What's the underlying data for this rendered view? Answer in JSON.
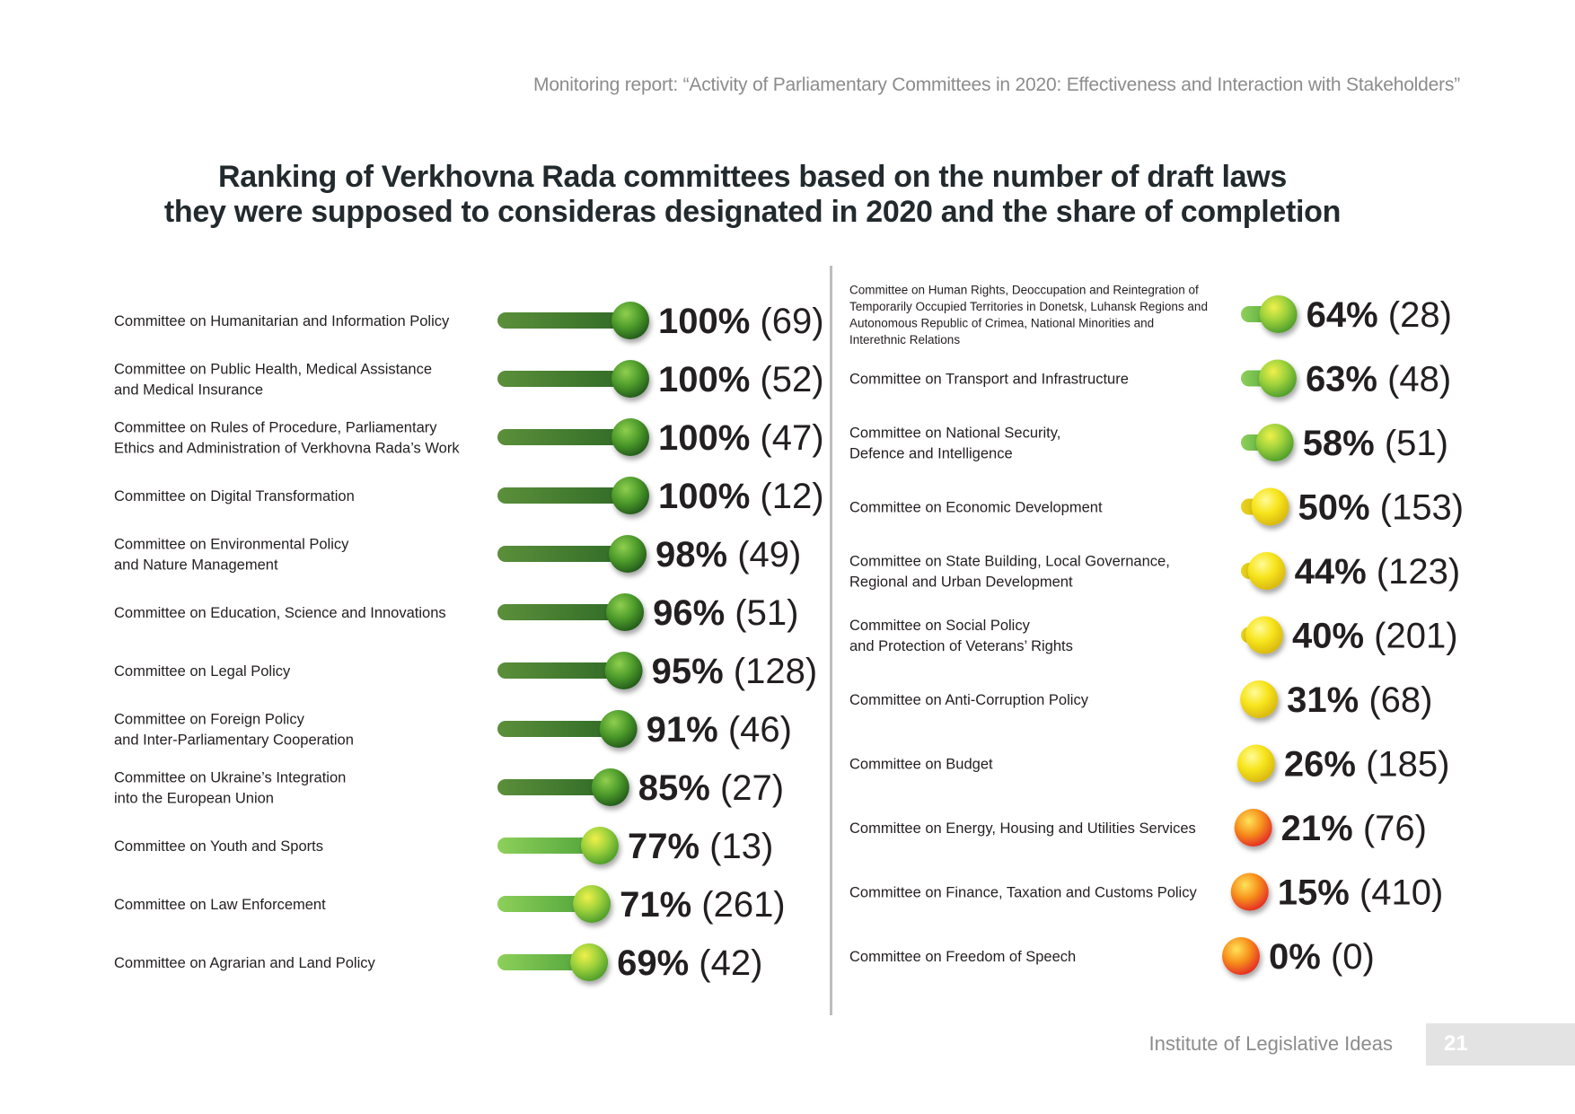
{
  "header": "Monitoring report: “Activity of Parliamentary Committees in 2020: Effectiveness and Interaction with Stakeholders”",
  "footer": {
    "institute": "Institute of Legislative Ideas",
    "page": "21"
  },
  "colors": {
    "dark_green": "#3f7d2a",
    "light_green": "#8dc63f",
    "yellow": "#f2e01b",
    "orange": "#f15a24"
  },
  "chart_data": {
    "type": "bar",
    "title": "Ranking of Verkhovna Rada committees based on the number of draft laws they were supposed to consideras designated in 2020 and the share of completion",
    "title_lines": [
      "Ranking of Verkhovna Rada committees based on the number of draft laws",
      "they were supposed to consideras designated in 2020 and the share of completion"
    ],
    "value_unit": "%",
    "xlim": [
      0,
      100
    ],
    "grid": false,
    "legend": "none",
    "series": [
      {
        "values": [
          {
            "label": [
              "Committee on Humanitarian and Information Policy"
            ],
            "pct": 100,
            "count": 69
          },
          {
            "label": [
              "Committee on Public Health, Medical Assistance",
              "and Medical Insurance"
            ],
            "pct": 100,
            "count": 52
          },
          {
            "label": [
              "Committee on Rules of Procedure, Parliamentary",
              "Ethics and Administration of Verkhovna Rada’s Work"
            ],
            "pct": 100,
            "count": 47
          },
          {
            "label": [
              "Committee on Digital Transformation"
            ],
            "pct": 100,
            "count": 12
          },
          {
            "label": [
              "Committee on Environmental Policy",
              "and Nature Management"
            ],
            "pct": 98,
            "count": 49
          },
          {
            "label": [
              "Committee on Education, Science and Innovations"
            ],
            "pct": 96,
            "count": 51
          },
          {
            "label": [
              "Committee on Legal Policy"
            ],
            "pct": 95,
            "count": 128
          },
          {
            "label": [
              "Committee on Foreign Policy",
              "and Inter-Parliamentary Cooperation"
            ],
            "pct": 91,
            "count": 46
          },
          {
            "label": [
              "Committee on Ukraine’s Integration",
              "into the European Union"
            ],
            "pct": 85,
            "count": 27
          },
          {
            "label": [
              "Committee on Youth and Sports"
            ],
            "pct": 77,
            "count": 13
          },
          {
            "label": [
              "Committee on Law Enforcement"
            ],
            "pct": 71,
            "count": 261
          },
          {
            "label": [
              "Committee on Agrarian and Land Policy"
            ],
            "pct": 69,
            "count": 42
          }
        ]
      },
      {
        "values": [
          {
            "label": [
              "Committee on Human Rights, Deoccupation and Reintegration of",
              "Temporarily Occupied Territories in Donetsk, Luhansk Regions and",
              "Autonomous Republic of Crimea, National Minorities and",
              "Interethnic Relations"
            ],
            "pct": 64,
            "count": 28
          },
          {
            "label": [
              "Committee on Transport and Infrastructure"
            ],
            "pct": 63,
            "count": 48
          },
          {
            "label": [
              "Committee on National Security,",
              "Defence and Intelligence"
            ],
            "pct": 58,
            "count": 51
          },
          {
            "label": [
              "Committee on Economic Development"
            ],
            "pct": 50,
            "count": 153
          },
          {
            "label": [
              "Committee on State Building, Local Governance,",
              "Regional and Urban Development"
            ],
            "pct": 44,
            "count": 123
          },
          {
            "label": [
              "Committee on Social Policy",
              "and Protection of Veterans’ Rights"
            ],
            "pct": 40,
            "count": 201
          },
          {
            "label": [
              "Committee on Anti-Corruption Policy"
            ],
            "pct": 31,
            "count": 68
          },
          {
            "label": [
              "Committee on Budget"
            ],
            "pct": 26,
            "count": 185
          },
          {
            "label": [
              "Committee on Energy, Housing and Utilities Services"
            ],
            "pct": 21,
            "count": 76
          },
          {
            "label": [
              "Committee on Finance, Taxation and Customs Policy"
            ],
            "pct": 15,
            "count": 410
          },
          {
            "label": [
              "Committee on Freedom of Speech"
            ],
            "pct": 0,
            "count": 0
          }
        ]
      }
    ]
  }
}
